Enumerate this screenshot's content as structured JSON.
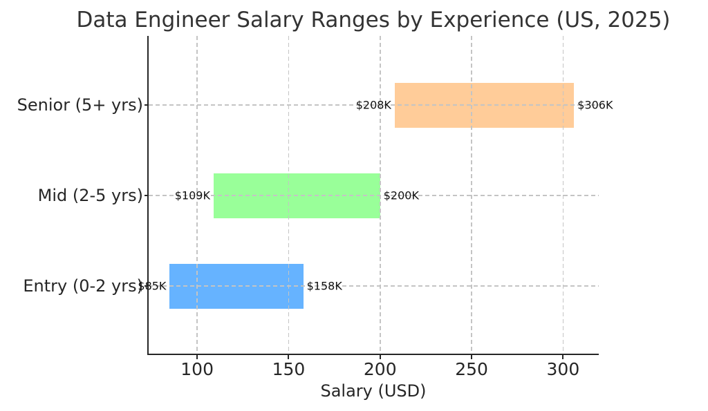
{
  "chart_data": {
    "type": "bar",
    "variant": "horizontal-range-bars",
    "title": "Data Engineer Salary Ranges by Experience (US, 2025)",
    "xlabel": "Salary (USD)",
    "ylabel": "",
    "unit": "thousand USD",
    "categories": [
      "Senior (5+ yrs)",
      "Mid (2-5 yrs)",
      "Entry (0-2 yrs)"
    ],
    "series": [
      {
        "name": "Senior (5+ yrs)",
        "min": 208,
        "max": 306,
        "min_label": "$208K",
        "max_label": "$306K",
        "color": "#ffcc99"
      },
      {
        "name": "Mid (2-5 yrs)",
        "min": 109,
        "max": 200,
        "min_label": "$109K",
        "max_label": "$200K",
        "color": "#99ff99"
      },
      {
        "name": "Entry (0-2 yrs)",
        "min": 85,
        "max": 158,
        "min_label": "$85K",
        "max_label": "$158K",
        "color": "#66b3ff"
      }
    ],
    "xlim": [
      73.5,
      319.5
    ],
    "xticks": [
      100,
      150,
      200,
      250,
      300
    ],
    "grid": true,
    "grid_style": "dashed",
    "legend": false
  },
  "colors": {
    "background": "#ffffff",
    "grid": "#c4c4c4",
    "spine": "#262626",
    "tick_text": "#262626",
    "title_text": "#333333",
    "annotation_text": "#111111"
  }
}
